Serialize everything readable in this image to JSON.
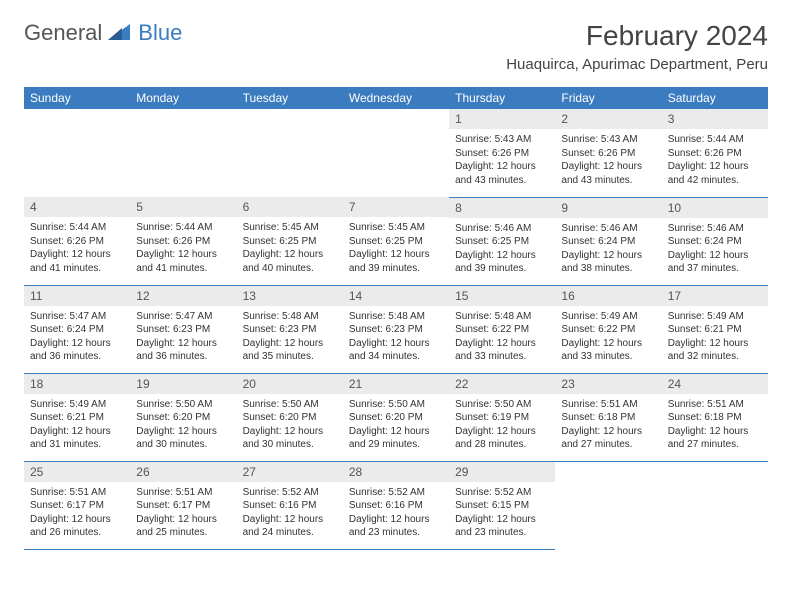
{
  "branding": {
    "text1": "General",
    "text2": "Blue"
  },
  "title": "February 2024",
  "location": "Huaquirca, Apurimac Department, Peru",
  "day_headers": [
    "Sunday",
    "Monday",
    "Tuesday",
    "Wednesday",
    "Thursday",
    "Friday",
    "Saturday"
  ],
  "colors": {
    "header_bg": "#3b7bbf",
    "header_fg": "#ffffff",
    "daynum_bg": "#ebebeb",
    "row_border": "#3b7bbf"
  },
  "weeks": [
    [
      null,
      null,
      null,
      null,
      {
        "n": "1",
        "sunrise": "5:43 AM",
        "sunset": "6:26 PM",
        "daylight": "12 hours and 43 minutes."
      },
      {
        "n": "2",
        "sunrise": "5:43 AM",
        "sunset": "6:26 PM",
        "daylight": "12 hours and 43 minutes."
      },
      {
        "n": "3",
        "sunrise": "5:44 AM",
        "sunset": "6:26 PM",
        "daylight": "12 hours and 42 minutes."
      }
    ],
    [
      {
        "n": "4",
        "sunrise": "5:44 AM",
        "sunset": "6:26 PM",
        "daylight": "12 hours and 41 minutes."
      },
      {
        "n": "5",
        "sunrise": "5:44 AM",
        "sunset": "6:26 PM",
        "daylight": "12 hours and 41 minutes."
      },
      {
        "n": "6",
        "sunrise": "5:45 AM",
        "sunset": "6:25 PM",
        "daylight": "12 hours and 40 minutes."
      },
      {
        "n": "7",
        "sunrise": "5:45 AM",
        "sunset": "6:25 PM",
        "daylight": "12 hours and 39 minutes."
      },
      {
        "n": "8",
        "sunrise": "5:46 AM",
        "sunset": "6:25 PM",
        "daylight": "12 hours and 39 minutes."
      },
      {
        "n": "9",
        "sunrise": "5:46 AM",
        "sunset": "6:24 PM",
        "daylight": "12 hours and 38 minutes."
      },
      {
        "n": "10",
        "sunrise": "5:46 AM",
        "sunset": "6:24 PM",
        "daylight": "12 hours and 37 minutes."
      }
    ],
    [
      {
        "n": "11",
        "sunrise": "5:47 AM",
        "sunset": "6:24 PM",
        "daylight": "12 hours and 36 minutes."
      },
      {
        "n": "12",
        "sunrise": "5:47 AM",
        "sunset": "6:23 PM",
        "daylight": "12 hours and 36 minutes."
      },
      {
        "n": "13",
        "sunrise": "5:48 AM",
        "sunset": "6:23 PM",
        "daylight": "12 hours and 35 minutes."
      },
      {
        "n": "14",
        "sunrise": "5:48 AM",
        "sunset": "6:23 PM",
        "daylight": "12 hours and 34 minutes."
      },
      {
        "n": "15",
        "sunrise": "5:48 AM",
        "sunset": "6:22 PM",
        "daylight": "12 hours and 33 minutes."
      },
      {
        "n": "16",
        "sunrise": "5:49 AM",
        "sunset": "6:22 PM",
        "daylight": "12 hours and 33 minutes."
      },
      {
        "n": "17",
        "sunrise": "5:49 AM",
        "sunset": "6:21 PM",
        "daylight": "12 hours and 32 minutes."
      }
    ],
    [
      {
        "n": "18",
        "sunrise": "5:49 AM",
        "sunset": "6:21 PM",
        "daylight": "12 hours and 31 minutes."
      },
      {
        "n": "19",
        "sunrise": "5:50 AM",
        "sunset": "6:20 PM",
        "daylight": "12 hours and 30 minutes."
      },
      {
        "n": "20",
        "sunrise": "5:50 AM",
        "sunset": "6:20 PM",
        "daylight": "12 hours and 30 minutes."
      },
      {
        "n": "21",
        "sunrise": "5:50 AM",
        "sunset": "6:20 PM",
        "daylight": "12 hours and 29 minutes."
      },
      {
        "n": "22",
        "sunrise": "5:50 AM",
        "sunset": "6:19 PM",
        "daylight": "12 hours and 28 minutes."
      },
      {
        "n": "23",
        "sunrise": "5:51 AM",
        "sunset": "6:18 PM",
        "daylight": "12 hours and 27 minutes."
      },
      {
        "n": "24",
        "sunrise": "5:51 AM",
        "sunset": "6:18 PM",
        "daylight": "12 hours and 27 minutes."
      }
    ],
    [
      {
        "n": "25",
        "sunrise": "5:51 AM",
        "sunset": "6:17 PM",
        "daylight": "12 hours and 26 minutes."
      },
      {
        "n": "26",
        "sunrise": "5:51 AM",
        "sunset": "6:17 PM",
        "daylight": "12 hours and 25 minutes."
      },
      {
        "n": "27",
        "sunrise": "5:52 AM",
        "sunset": "6:16 PM",
        "daylight": "12 hours and 24 minutes."
      },
      {
        "n": "28",
        "sunrise": "5:52 AM",
        "sunset": "6:16 PM",
        "daylight": "12 hours and 23 minutes."
      },
      {
        "n": "29",
        "sunrise": "5:52 AM",
        "sunset": "6:15 PM",
        "daylight": "12 hours and 23 minutes."
      },
      null,
      null
    ]
  ],
  "labels": {
    "sunrise": "Sunrise: ",
    "sunset": "Sunset: ",
    "daylight": "Daylight: "
  }
}
